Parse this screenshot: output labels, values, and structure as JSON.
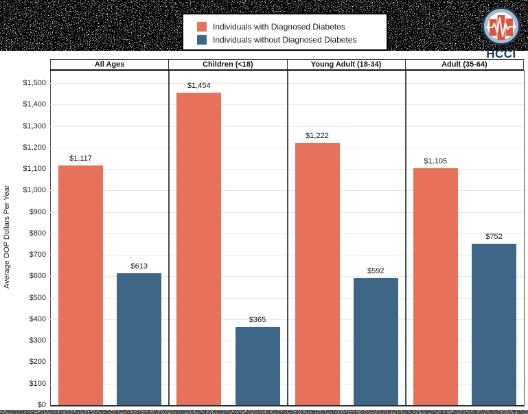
{
  "legend": {
    "items": [
      {
        "label": "Individuals with Diagnosed Diabetes",
        "color": "#E8715B"
      },
      {
        "label": "Individuals without Diagnosed Diabetes",
        "color": "#3D6687"
      }
    ]
  },
  "logo": {
    "text": "HCCI",
    "circle_color": "#1C3C5E",
    "ring_color": "#A9BBC8",
    "bar_color": "#DC5742"
  },
  "chart_data": {
    "type": "bar",
    "categories": [
      "All Ages",
      "Children (<18)",
      "Young Adult (18-34)",
      "Adult (35-64)"
    ],
    "series": [
      {
        "name": "Individuals with Diagnosed Diabetes",
        "color": "#E8715B",
        "values": [
          1117,
          1454,
          1222,
          1105
        ],
        "labels": [
          "$1,117",
          "$1,454",
          "$1,222",
          "$1,105"
        ]
      },
      {
        "name": "Individuals without Diagnosed Diabetes",
        "color": "#3D6687",
        "values": [
          613,
          365,
          592,
          752
        ],
        "labels": [
          "$613",
          "$365",
          "$592",
          "$752"
        ]
      }
    ],
    "title": "",
    "xlabel": "",
    "ylabel": "Average OOP Dollars Per Year",
    "ylim": [
      0,
      1500
    ],
    "ytick_step": 100,
    "yticks": [
      "$0",
      "$100",
      "$200",
      "$300",
      "$400",
      "$500",
      "$600",
      "$700",
      "$800",
      "$900",
      "$1,000",
      "$1,100",
      "$1,200",
      "$1,300",
      "$1,400",
      "$1,500"
    ],
    "grid": "horizontal",
    "legend_position": "top-center"
  }
}
